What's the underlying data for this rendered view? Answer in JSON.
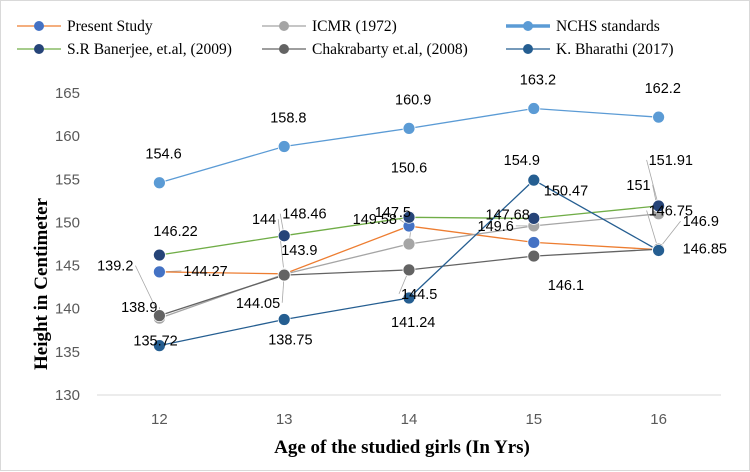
{
  "chart_data": {
    "type": "line",
    "title": "",
    "xlabel": "Age of the studied girls (In Yrs)",
    "ylabel": "Height in Centimeter",
    "x": [
      12,
      13,
      14,
      15,
      16
    ],
    "ylim": [
      130,
      165
    ],
    "yticks": [
      130,
      135,
      140,
      145,
      150,
      155,
      160,
      165
    ],
    "grid": false,
    "legend_position": "top",
    "series": [
      {
        "name": "Present Study",
        "color": "#ed7d31",
        "marker_color": "#4472c4",
        "values": [
          144.27,
          144.05,
          149.58,
          147.68,
          146.85
        ]
      },
      {
        "name": "ICMR (1972)",
        "color": "#a5a5a5",
        "marker_color": "#a5a5a5",
        "values": [
          138.9,
          144.0,
          147.5,
          149.6,
          151.0
        ]
      },
      {
        "name": "NCHS standards",
        "color": "#5b9bd5",
        "marker_color": "#5b9bd5",
        "values": [
          154.6,
          158.8,
          160.9,
          163.2,
          162.2
        ]
      },
      {
        "name": "S.R Banerjee, et.al, (2009)",
        "color": "#70ad47",
        "marker_color": "#264478",
        "values": [
          146.22,
          148.46,
          150.6,
          150.47,
          151.91
        ]
      },
      {
        "name": "Chakrabarty et.al, (2008)",
        "color": "#636363",
        "marker_color": "#636363",
        "values": [
          139.2,
          143.9,
          144.5,
          146.1,
          146.9
        ]
      },
      {
        "name": "K. Bharathi (2017)",
        "color": "#255e91",
        "marker_color": "#255e91",
        "values": [
          135.72,
          138.75,
          141.24,
          154.9,
          146.75
        ]
      }
    ]
  }
}
